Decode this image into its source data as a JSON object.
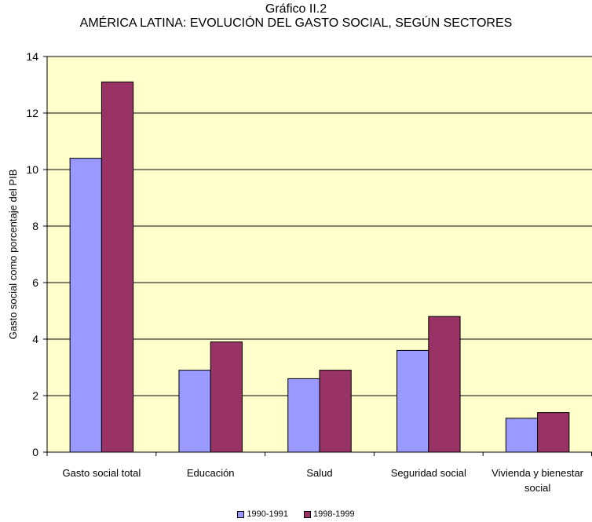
{
  "chart_data": {
    "type": "bar",
    "title": "Gráfico II.2",
    "subtitle": "AMÉRICA LATINA: EVOLUCIÓN DEL GASTO SOCIAL, SEGÚN SECTORES",
    "xlabel": "",
    "ylabel": "Gasto social como porcentaje del PIB",
    "ylim": [
      0,
      14
    ],
    "yticks": [
      "0",
      "2",
      "4",
      "6",
      "8",
      "10",
      "12",
      "14"
    ],
    "grid": true,
    "legend_position": "bottom",
    "plot_background": "#FFFFCC",
    "categories": [
      [
        "Gasto social total"
      ],
      [
        "Educación"
      ],
      [
        "Salud"
      ],
      [
        "Seguridad social"
      ],
      [
        "Vivienda y bienestar",
        "social"
      ]
    ],
    "series": [
      {
        "name": "1990-1991",
        "color": "#9999FF",
        "values": [
          10.4,
          2.9,
          2.6,
          3.6,
          1.2
        ]
      },
      {
        "name": "1998-1999",
        "color": "#993366",
        "values": [
          13.1,
          3.9,
          2.9,
          4.8,
          1.4
        ]
      }
    ]
  }
}
